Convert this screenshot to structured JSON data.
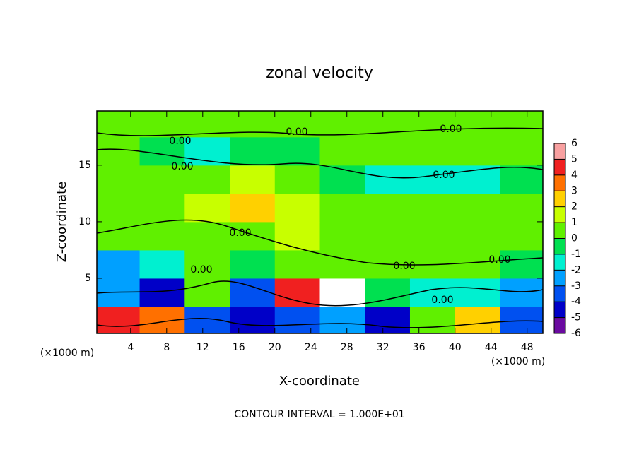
{
  "chart_data": {
    "type": "heatmap",
    "title": "zonal velocity",
    "x_label": "X-coordinate",
    "y_label": "Z-coordinate",
    "x_unit_label": "(×1000 m)",
    "footer": "CONTOUR INTERVAL = 1.000E+01",
    "contour_label": "0.00",
    "xlim": [
      0.25,
      49.75
    ],
    "ylim": [
      0.125,
      19.8
    ],
    "xticks": [
      4,
      8,
      12,
      16,
      20,
      24,
      28,
      32,
      36,
      40,
      44,
      48
    ],
    "yticks": [
      5,
      10,
      15
    ],
    "x": [
      2.5,
      7.5,
      12.5,
      17.5,
      22.5,
      27.5,
      32.5,
      37.5,
      42.5,
      47.5
    ],
    "y": [
      1.25,
      3.75,
      6.25,
      8.75,
      11.25,
      13.75,
      16.25,
      18.75
    ],
    "z": [
      [
        4.5,
        3.5,
        -3.0,
        -4.5,
        -3.8,
        -2.5,
        -4.0,
        1.0,
        2.5,
        -3.0
      ],
      [
        -2.8,
        -4.5,
        0.5,
        -3.5,
        4.5,
        6.5,
        -0.5,
        -1.5,
        -1.0,
        -2.5
      ],
      [
        -2.0,
        -1.5,
        0.2,
        -0.5,
        0.8,
        0.5,
        0.3,
        0.6,
        0.2,
        -0.3
      ],
      [
        0.2,
        0.5,
        0.8,
        1.0,
        1.2,
        0.8,
        0.5,
        0.6,
        0.3,
        0.2
      ],
      [
        0.4,
        0.6,
        1.5,
        2.5,
        1.2,
        0.5,
        0.3,
        0.2,
        0.1,
        0.4
      ],
      [
        0.5,
        0.5,
        0.8,
        1.2,
        0.6,
        -0.3,
        -1.0,
        -1.3,
        -1.1,
        -0.5
      ],
      [
        0.5,
        -0.5,
        -1.2,
        -0.8,
        -0.5,
        0.3,
        0.4,
        0.2,
        0.5,
        0.6
      ],
      [
        0.3,
        0.2,
        0.5,
        0.4,
        0.3,
        0.2,
        0.3,
        0.5,
        0.4,
        0.3
      ]
    ],
    "colorbar": {
      "ticks": [
        -6,
        -5,
        -4,
        -3,
        -2,
        -1,
        0,
        1,
        2,
        3,
        4,
        5,
        6
      ],
      "colors": [
        "#6a0aa0",
        "#0000c8",
        "#0050f0",
        "#00a0ff",
        "#00f0d0",
        "#00e050",
        "#60f000",
        "#c8ff00",
        "#ffd000",
        "#ff7000",
        "#f02020",
        "#f8a0a0"
      ]
    }
  }
}
